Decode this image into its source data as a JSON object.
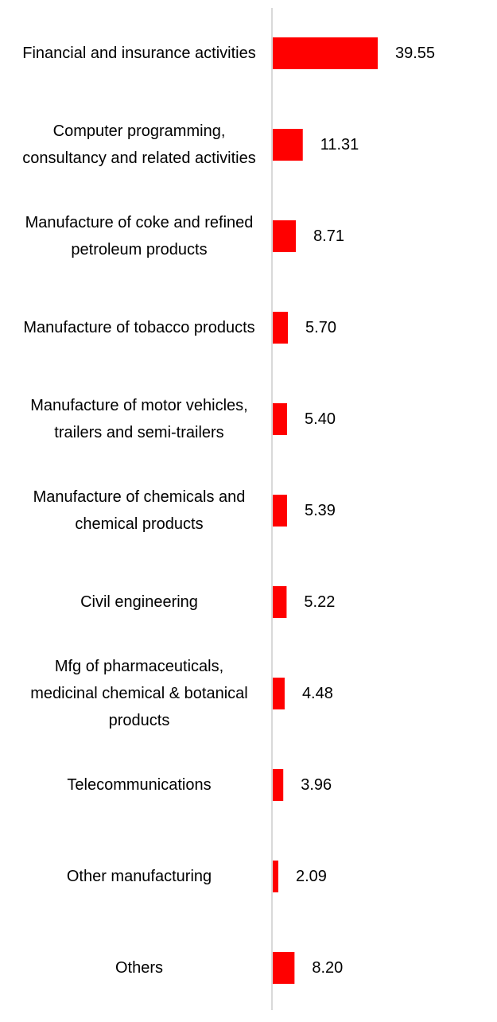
{
  "chart_data": {
    "type": "bar",
    "orientation": "horizontal",
    "title": "",
    "xlabel": "",
    "ylabel": "",
    "categories": [
      "Financial and insurance activities",
      "Computer programming, consultancy and related activities",
      "Manufacture of coke and refined petroleum products",
      "Manufacture of tobacco products",
      "Manufacture of motor vehicles, trailers and semi-trailers",
      "Manufacture of chemicals and chemical products",
      "Civil engineering",
      "Mfg of pharmaceuticals, medicinal chemical & botanical products",
      "Telecommunications",
      "Other manufacturing",
      "Others"
    ],
    "values": [
      39.55,
      11.31,
      8.71,
      5.7,
      5.4,
      5.39,
      5.22,
      4.48,
      3.96,
      2.09,
      8.2
    ],
    "value_labels": [
      "39.55",
      "11.31",
      "8.71",
      "5.70",
      "5.40",
      "5.39",
      "5.22",
      "4.48",
      "3.96",
      "2.09",
      "8.20"
    ],
    "xlim": [
      0,
      39.55
    ],
    "grid": false,
    "legend": "none",
    "bar_color": "#ff0000",
    "axis_color": "#d9d9d9"
  }
}
